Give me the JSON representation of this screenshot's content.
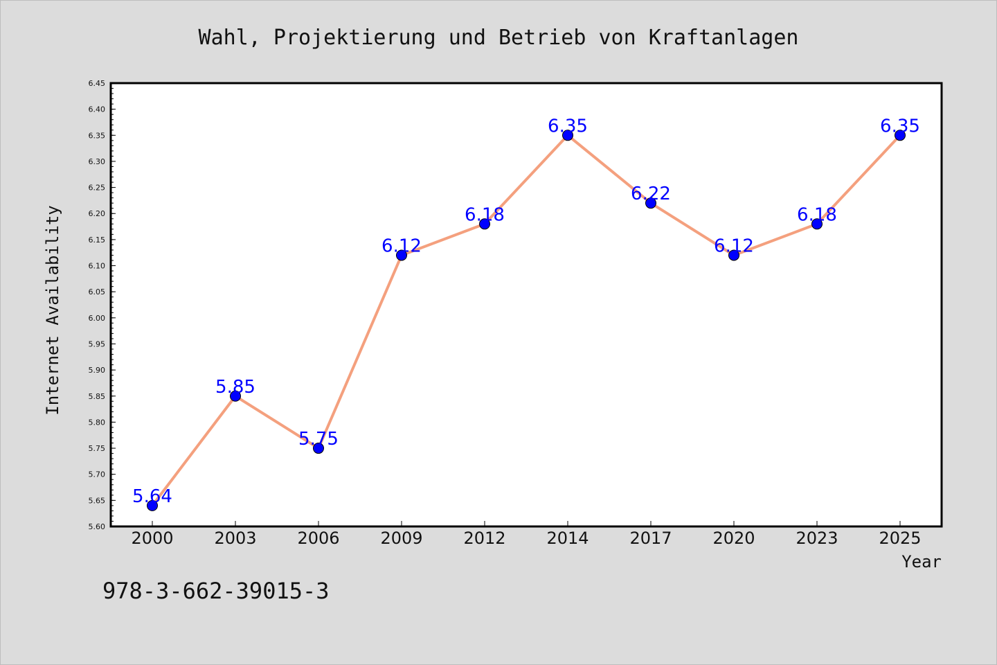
{
  "chart_data": {
    "type": "line",
    "title": "Wahl, Projektierung und Betrieb von Kraftanlagen",
    "xlabel": "Year",
    "ylabel": "Internet Availability",
    "categories": [
      "2000",
      "2003",
      "2006",
      "2009",
      "2012",
      "2014",
      "2017",
      "2020",
      "2023",
      "2025"
    ],
    "series": [
      {
        "values": [
          5.64,
          5.85,
          5.75,
          6.12,
          6.18,
          6.35,
          6.22,
          6.12,
          6.18,
          6.35
        ],
        "labels": [
          "5.64",
          "5.85",
          "5.75",
          "6.12",
          "6.18",
          "6.35",
          "6.22",
          "6.12",
          "6.18",
          "6.35"
        ]
      }
    ],
    "ylim": [
      5.6,
      6.45
    ],
    "yticks": [
      "5.60",
      "5.65",
      "5.70",
      "5.75",
      "5.80",
      "5.85",
      "5.90",
      "5.95",
      "6.00",
      "6.05",
      "6.10",
      "6.15",
      "6.20",
      "6.25",
      "6.30",
      "6.35",
      "6.40",
      "6.45"
    ],
    "grid": false,
    "legend": "none",
    "colors": {
      "line": "#f4a07e",
      "marker": "#0000ff",
      "marker_edge": "#000000",
      "data_label": "#0000ff",
      "plot_background": "#ffffff",
      "figure_background": "#dcdcdc"
    }
  },
  "annotation": {
    "text": "978-3-662-39015-3"
  }
}
